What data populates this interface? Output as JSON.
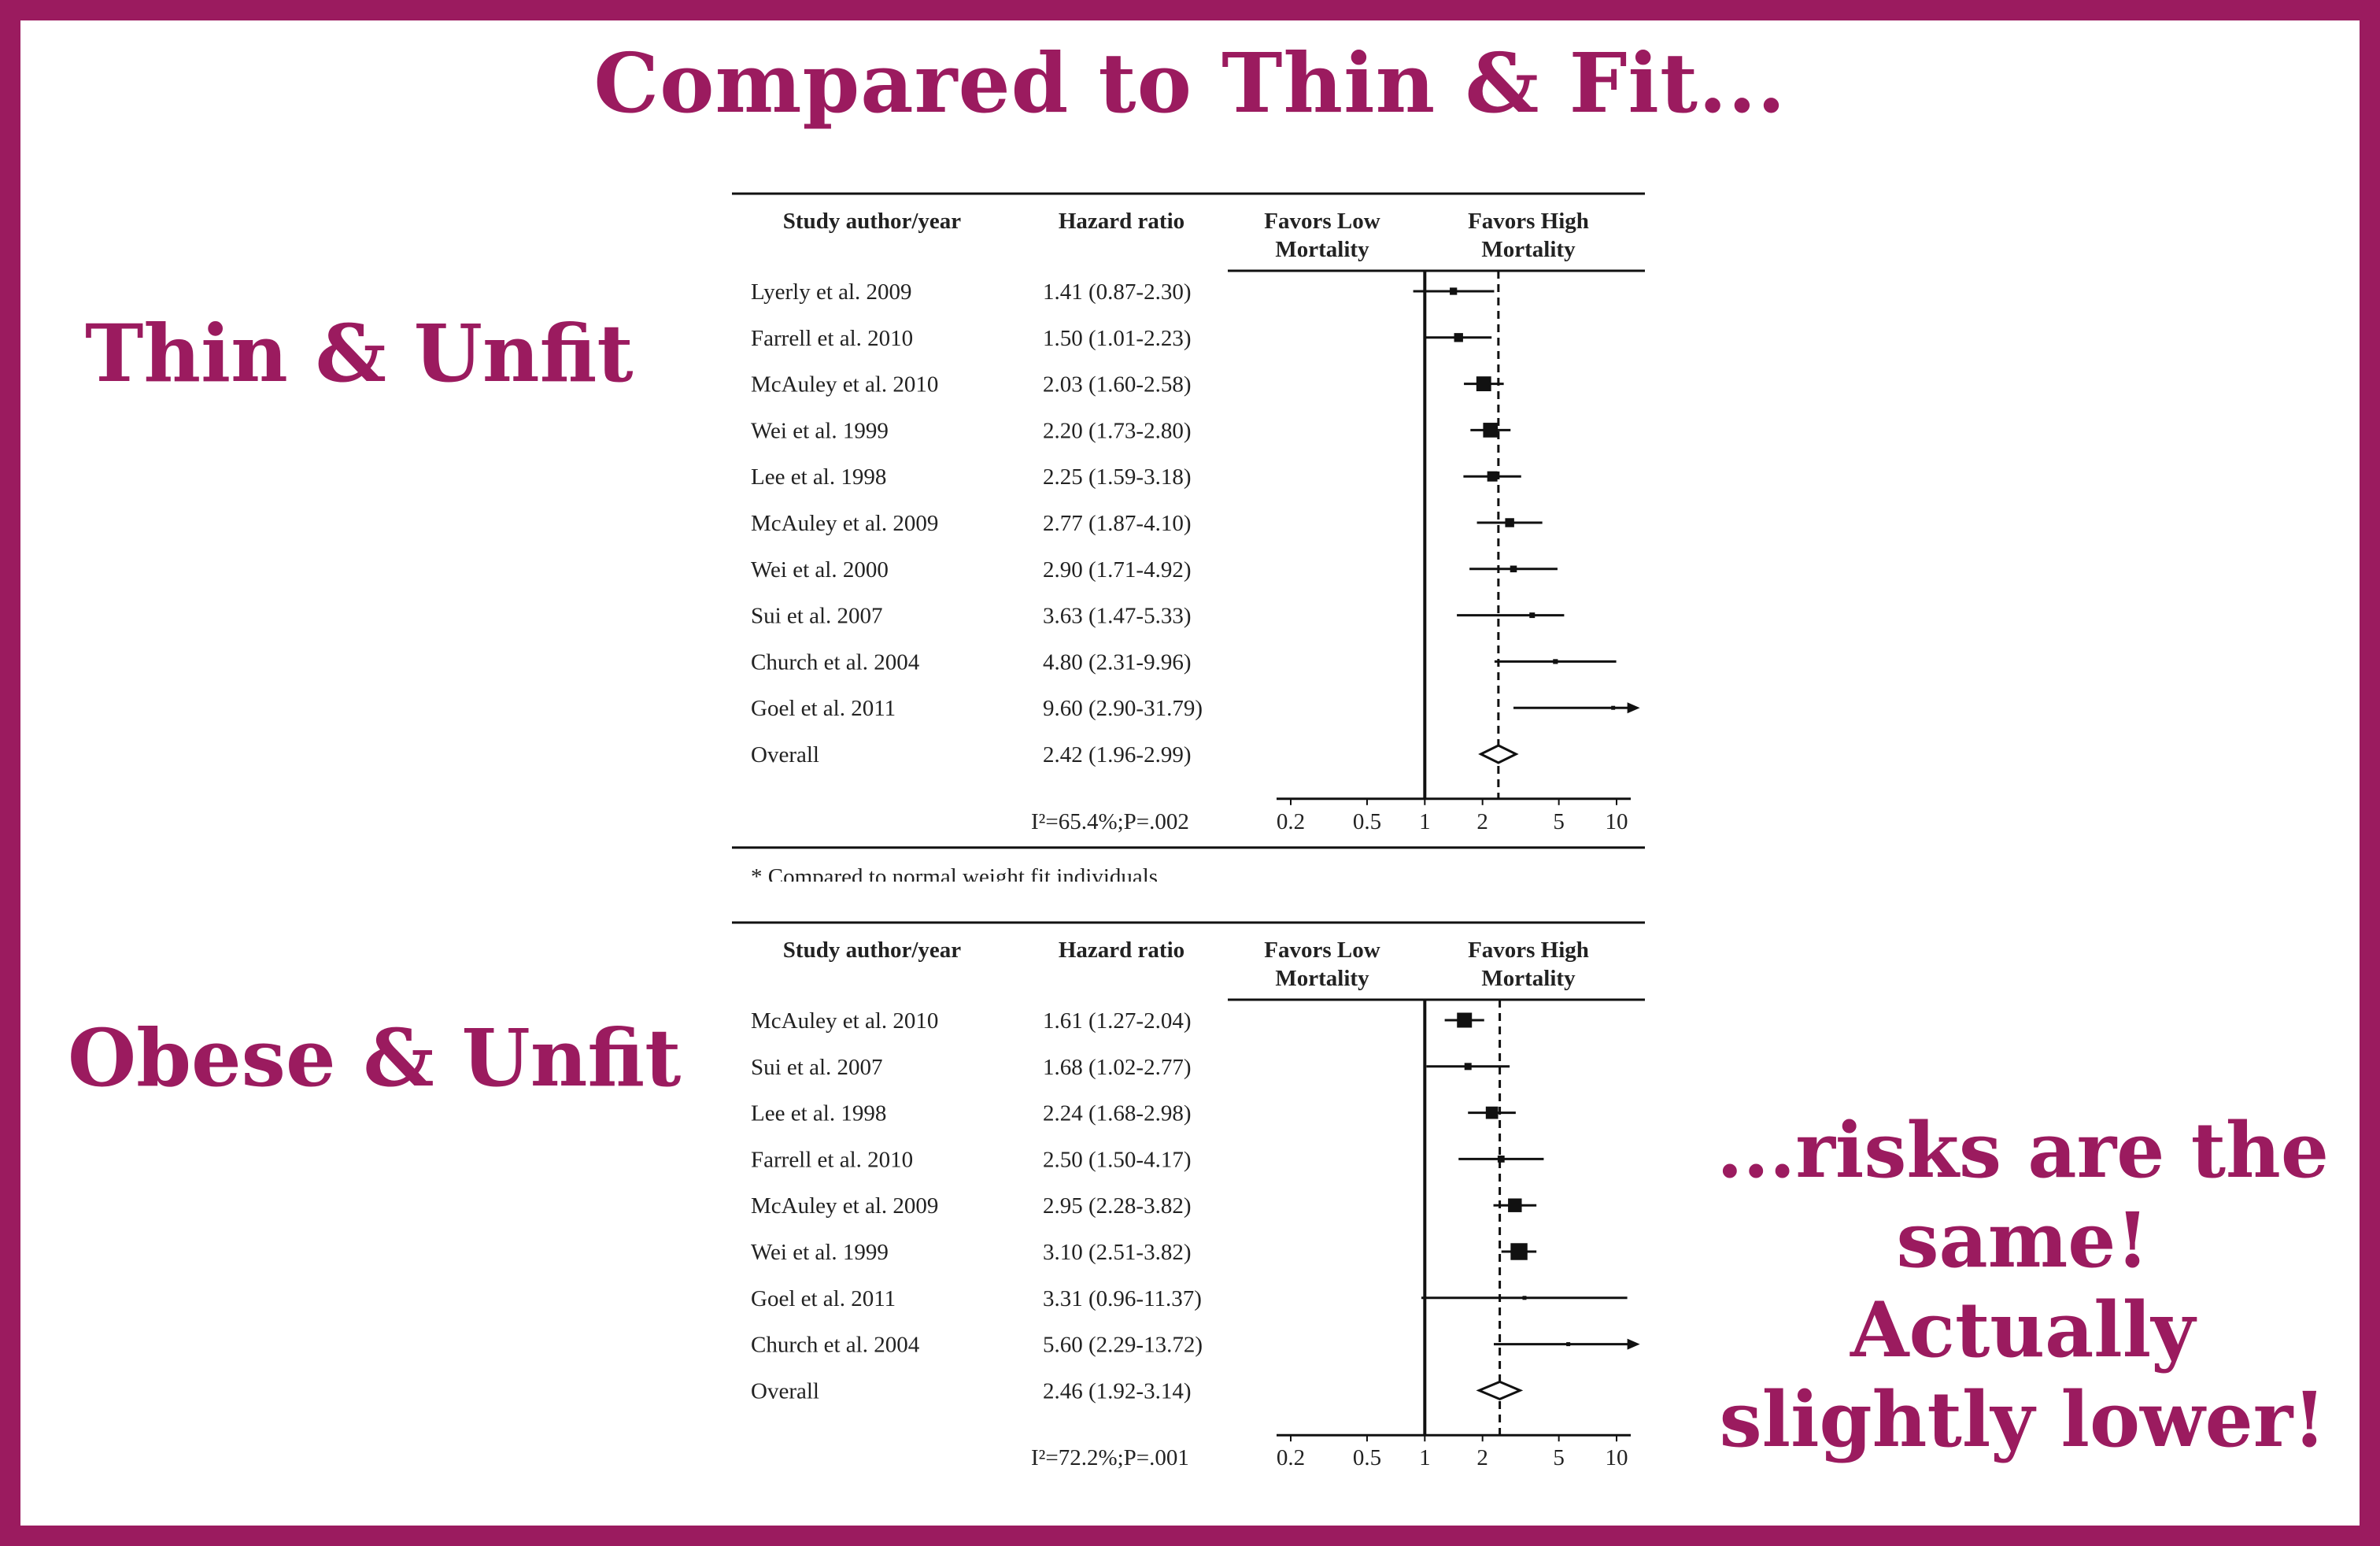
{
  "title": "Compared to Thin & Fit...",
  "labels": {
    "upper": "Thin & Unfit",
    "lower": "Obese & Unfit"
  },
  "conclusion": [
    "...risks are the",
    "same!",
    "Actually",
    "slightly lower!"
  ],
  "colors": {
    "accent": "#9b1b5f",
    "ink": "#111111"
  },
  "chart_data": [
    {
      "type": "forest",
      "headers": {
        "study": "Study author/year",
        "hr": "Hazard ratio",
        "low": [
          "Favors Low",
          "Mortality"
        ],
        "high": [
          "Favors High",
          "Mortality"
        ]
      },
      "xscale": "log",
      "xlim": [
        0.2,
        10
      ],
      "xticks": [
        "0.2",
        "0.5",
        "1",
        "2",
        "5",
        "10"
      ],
      "reference_line": 1,
      "overall_line": 2.42,
      "rows": [
        {
          "study": "Lyerly et al. 2009",
          "hr_text": "1.41 (0.87-2.30)",
          "hr": 1.41,
          "lo": 0.87,
          "hi": 2.3
        },
        {
          "study": "Farrell et al. 2010",
          "hr_text": "1.50 (1.01-2.23)",
          "hr": 1.5,
          "lo": 1.01,
          "hi": 2.23
        },
        {
          "study": "McAuley et al. 2010",
          "hr_text": "2.03 (1.60-2.58)",
          "hr": 2.03,
          "lo": 1.6,
          "hi": 2.58
        },
        {
          "study": "Wei et al. 1999",
          "hr_text": "2.20 (1.73-2.80)",
          "hr": 2.2,
          "lo": 1.73,
          "hi": 2.8
        },
        {
          "study": "Lee et al. 1998",
          "hr_text": "2.25 (1.59-3.18)",
          "hr": 2.25,
          "lo": 1.59,
          "hi": 3.18
        },
        {
          "study": "McAuley et al. 2009",
          "hr_text": "2.77 (1.87-4.10)",
          "hr": 2.77,
          "lo": 1.87,
          "hi": 4.1
        },
        {
          "study": "Wei et al. 2000",
          "hr_text": "2.90 (1.71-4.92)",
          "hr": 2.9,
          "lo": 1.71,
          "hi": 4.92
        },
        {
          "study": "Sui et al. 2007",
          "hr_text": "3.63 (1.47-5.33)",
          "hr": 3.63,
          "lo": 1.47,
          "hi": 5.33
        },
        {
          "study": "Church et al. 2004",
          "hr_text": "4.80 (2.31-9.96)",
          "hr": 4.8,
          "lo": 2.31,
          "hi": 9.96
        },
        {
          "study": "Goel et al. 2011",
          "hr_text": "9.60 (2.90-31.79)",
          "hr": 9.6,
          "lo": 2.9,
          "hi": 31.79
        }
      ],
      "overall": {
        "study": "Overall",
        "hr_text": "2.42 (1.96-2.99)",
        "hr": 2.42,
        "lo": 1.96,
        "hi": 2.99
      },
      "heterogeneity": "I²=65.4%;P=.002",
      "footnote": "* Compared to normal weight fit individuals"
    },
    {
      "type": "forest",
      "headers": {
        "study": "Study author/year",
        "hr": "Hazard ratio",
        "low": [
          "Favors Low",
          "Mortality"
        ],
        "high": [
          "Favors High",
          "Mortality"
        ]
      },
      "xscale": "log",
      "xlim": [
        0.2,
        10
      ],
      "xticks": [
        "0.2",
        "0.5",
        "1",
        "2",
        "5",
        "10"
      ],
      "reference_line": 1,
      "overall_line": 2.46,
      "rows": [
        {
          "study": "McAuley et al. 2010",
          "hr_text": "1.61 (1.27-2.04)",
          "hr": 1.61,
          "lo": 1.27,
          "hi": 2.04
        },
        {
          "study": "Sui et al. 2007",
          "hr_text": "1.68 (1.02-2.77)",
          "hr": 1.68,
          "lo": 1.02,
          "hi": 2.77
        },
        {
          "study": "Lee et al. 1998",
          "hr_text": "2.24 (1.68-2.98)",
          "hr": 2.24,
          "lo": 1.68,
          "hi": 2.98
        },
        {
          "study": "Farrell et al. 2010",
          "hr_text": "2.50 (1.50-4.17)",
          "hr": 2.5,
          "lo": 1.5,
          "hi": 4.17
        },
        {
          "study": "McAuley et al. 2009",
          "hr_text": "2.95 (2.28-3.82)",
          "hr": 2.95,
          "lo": 2.28,
          "hi": 3.82
        },
        {
          "study": "Wei et al. 1999",
          "hr_text": "3.10 (2.51-3.82)",
          "hr": 3.1,
          "lo": 2.51,
          "hi": 3.82
        },
        {
          "study": "Goel et al. 2011",
          "hr_text": "3.31 (0.96-11.37)",
          "hr": 3.31,
          "lo": 0.96,
          "hi": 11.37
        },
        {
          "study": "Church et al. 2004",
          "hr_text": "5.60 (2.29-13.72)",
          "hr": 5.6,
          "lo": 2.29,
          "hi": 13.72
        }
      ],
      "overall": {
        "study": "Overall",
        "hr_text": "2.46 (1.92-3.14)",
        "hr": 2.46,
        "lo": 1.92,
        "hi": 3.14
      },
      "heterogeneity": "I²=72.2%;P=.001"
    }
  ]
}
